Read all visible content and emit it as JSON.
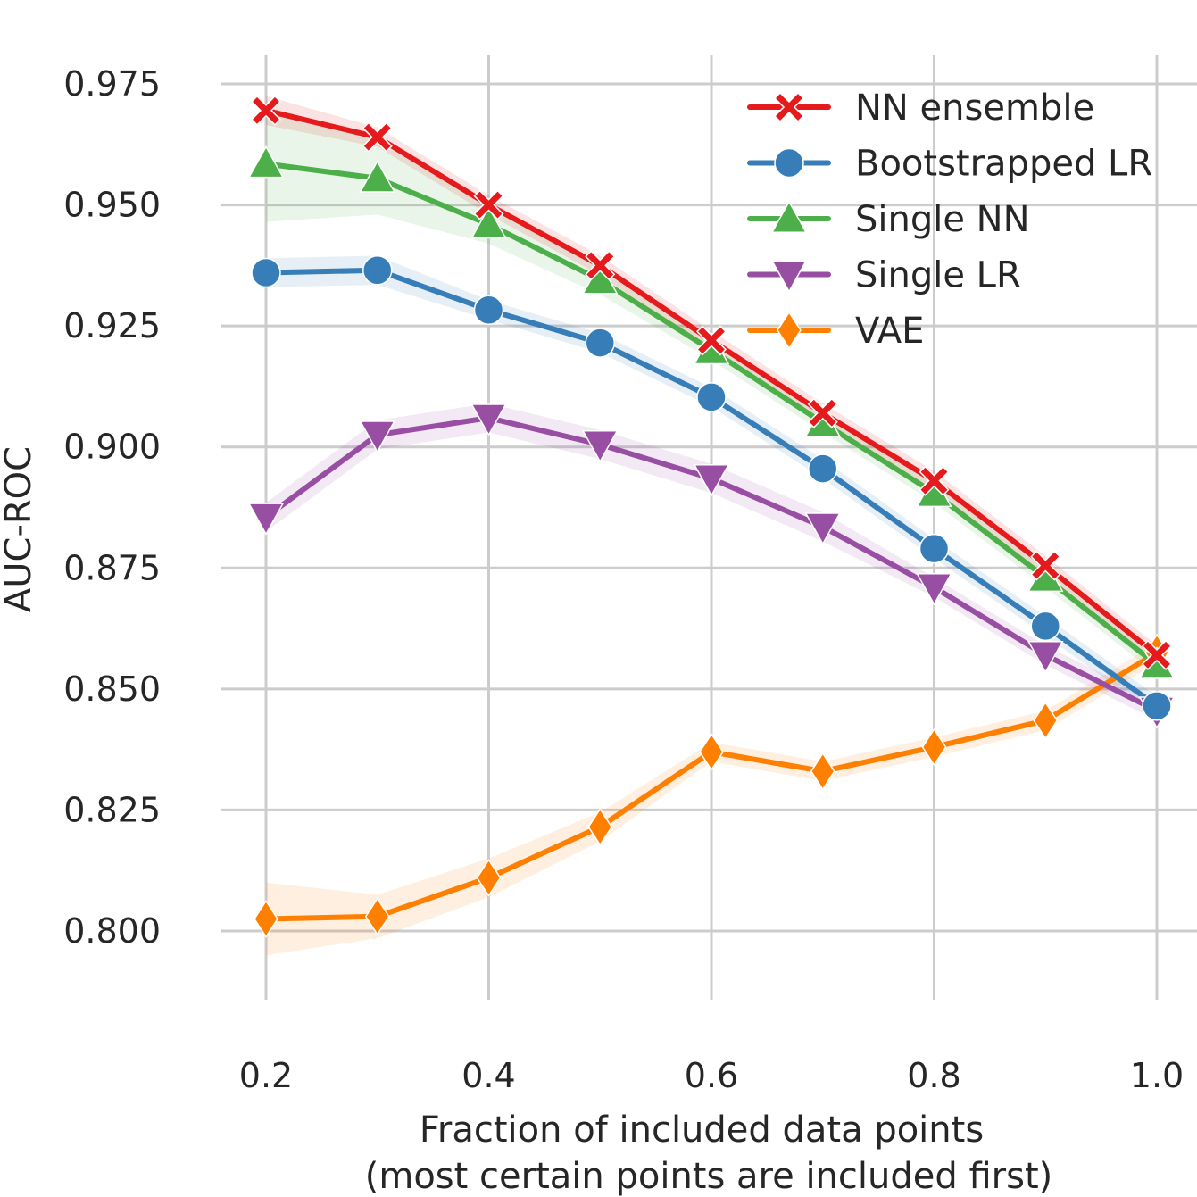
{
  "chart_data": {
    "type": "line",
    "title": "",
    "xlabel": "Fraction of included data points",
    "xlabel_line2": "(most certain points are included first)",
    "ylabel": "AUC-ROC",
    "xlim": [
      0.2,
      1.0
    ],
    "ylim": [
      0.79,
      0.98
    ],
    "x_ticks": [
      "0.2",
      "0.4",
      "0.6",
      "0.8",
      "1.0"
    ],
    "y_ticks": [
      "0.800",
      "0.825",
      "0.850",
      "0.875",
      "0.900",
      "0.925",
      "0.950",
      "0.975"
    ],
    "grid": true,
    "legend_position": "top-right",
    "x": [
      0.2,
      0.3,
      0.4,
      0.5,
      0.6,
      0.7,
      0.8,
      0.9,
      1.0
    ],
    "series": [
      {
        "name": "NN ensemble",
        "color": "#e41a1c",
        "marker": "x",
        "values": [
          0.9695,
          0.964,
          0.95,
          0.9375,
          0.922,
          0.907,
          0.893,
          0.8755,
          0.857
        ],
        "band": [
          0.003,
          0.002,
          0.002,
          0.002,
          0.002,
          0.002,
          0.002,
          0.002,
          0.002
        ]
      },
      {
        "name": "Bootstrapped LR",
        "color": "#377eb8",
        "marker": "circle",
        "values": [
          0.936,
          0.9365,
          0.9283,
          0.9215,
          0.9103,
          0.8955,
          0.879,
          0.863,
          0.8465
        ],
        "band": [
          0.003,
          0.003,
          0.002,
          0.002,
          0.002,
          0.002,
          0.002,
          0.002,
          0.002
        ]
      },
      {
        "name": "Single NN",
        "color": "#4daf4a",
        "marker": "triangle-up",
        "values": [
          0.9585,
          0.9555,
          0.946,
          0.9345,
          0.92,
          0.905,
          0.8905,
          0.873,
          0.855
        ],
        "band": [
          0.012,
          0.0075,
          0.004,
          0.003,
          0.002,
          0.002,
          0.002,
          0.002,
          0.002
        ]
      },
      {
        "name": "Single LR",
        "color": "#984ea3",
        "marker": "triangle-down",
        "values": [
          0.8855,
          0.9025,
          0.906,
          0.9005,
          0.8935,
          0.8835,
          0.871,
          0.857,
          0.8455
        ],
        "band": [
          0.003,
          0.003,
          0.003,
          0.003,
          0.003,
          0.003,
          0.002,
          0.002,
          0.002
        ]
      },
      {
        "name": "VAE",
        "color": "#ff7f00",
        "marker": "diamond",
        "values": [
          0.8025,
          0.803,
          0.811,
          0.8215,
          0.837,
          0.833,
          0.838,
          0.8435,
          0.8575
        ],
        "band": [
          0.0075,
          0.0045,
          0.004,
          0.003,
          0.002,
          0.002,
          0.002,
          0.002,
          0.002
        ]
      }
    ]
  }
}
